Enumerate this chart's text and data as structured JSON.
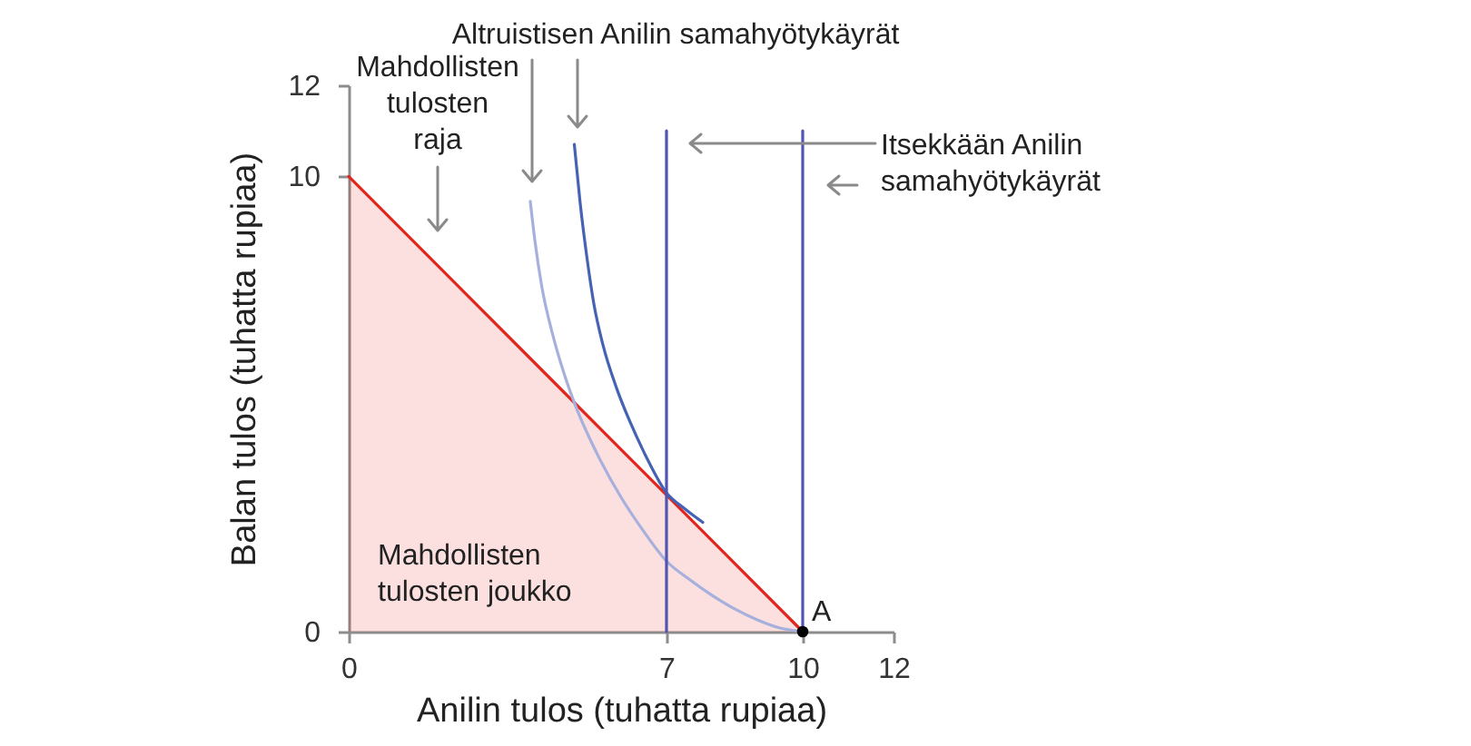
{
  "chart_data": {
    "type": "line",
    "xlabel": "Anilin tulos (tuhatta rupiaa)",
    "ylabel": "Balan tulos (tuhatta rupiaa)",
    "xlim": [
      0,
      12
    ],
    "xticks": [
      0,
      7,
      10,
      12
    ],
    "ylim": [
      0,
      12
    ],
    "yticks": [
      0,
      10,
      12
    ],
    "series": [
      {
        "type": "area",
        "color": "#e2261d",
        "x": [
          0,
          2,
          4,
          6,
          8,
          10
        ],
        "values": [
          10,
          8,
          6,
          4,
          2,
          0
        ]
      },
      {
        "color": "#a7b0dc",
        "x": [
          4.0,
          4.1,
          4.25,
          4.5,
          4.75,
          5.0,
          5.5,
          6.0,
          6.5,
          7.0,
          7.5,
          8.0,
          8.5,
          9.0,
          9.5,
          10.0
        ],
        "values": [
          9.45,
          8.6,
          7.6,
          6.5,
          5.65,
          4.95,
          3.85,
          2.95,
          2.2,
          1.55,
          1.15,
          0.8,
          0.5,
          0.26,
          0.08,
          0
        ]
      },
      {
        "color": "#4662b4",
        "x": [
          4.97,
          5.1,
          5.25,
          5.4,
          5.6,
          5.9,
          6.2,
          6.5,
          7.0,
          7.4,
          7.8
        ],
        "values": [
          10.7,
          9.4,
          8.2,
          7.2,
          6.3,
          5.35,
          4.6,
          3.95,
          3.05,
          2.7,
          2.4
        ]
      },
      {
        "color": "#4f55b0",
        "x": [
          7,
          7,
          7,
          7
        ],
        "values": [
          0,
          4,
          8,
          11
        ]
      },
      {
        "color": "#4f55b0",
        "x": [
          10,
          10,
          10,
          10
        ],
        "values": [
          0,
          4,
          8,
          11
        ]
      },
      {
        "type": "scatter",
        "color": "#000000",
        "marker": "circle",
        "x": [
          10
        ],
        "values": [
          0
        ]
      }
    ],
    "annotations": [
      "Altruistisen Anilin samahyötykäyrät",
      "Mahdollisten tulosten raja",
      "Itsekkään Anilin samahyötykäyrät",
      "Mahdollisten tulosten joukko",
      {
        "text": "A",
        "x": 10,
        "y": 0
      }
    ]
  }
}
